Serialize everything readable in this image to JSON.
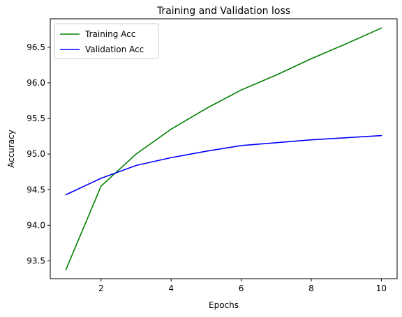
{
  "chart_data": {
    "type": "line",
    "title": "Training and Validation loss",
    "xlabel": "Epochs",
    "ylabel": "Accuracy",
    "x": [
      1,
      2,
      3,
      4,
      5,
      6,
      7,
      8,
      9,
      10
    ],
    "xlim": [
      0.55,
      10.45
    ],
    "ylim": [
      93.25,
      96.9
    ],
    "xticks": [
      2,
      4,
      6,
      8,
      10
    ],
    "yticks": [
      93.5,
      94.0,
      94.5,
      95.0,
      95.5,
      96.0,
      96.5
    ],
    "ytick_labels": [
      "93.5",
      "94.0",
      "94.5",
      "95.0",
      "95.5",
      "96.0",
      "96.5"
    ],
    "grid": false,
    "legend_position": "upper-left",
    "series": [
      {
        "name": "Training Acc",
        "color": "#008000",
        "values": [
          93.38,
          94.55,
          95.0,
          95.35,
          95.64,
          95.9,
          96.11,
          96.34,
          96.55,
          96.77
        ]
      },
      {
        "name": "Validation Acc",
        "color": "#0000ff",
        "values": [
          94.43,
          94.66,
          94.84,
          94.95,
          95.04,
          95.12,
          95.16,
          95.2,
          95.23,
          95.26
        ]
      }
    ]
  }
}
